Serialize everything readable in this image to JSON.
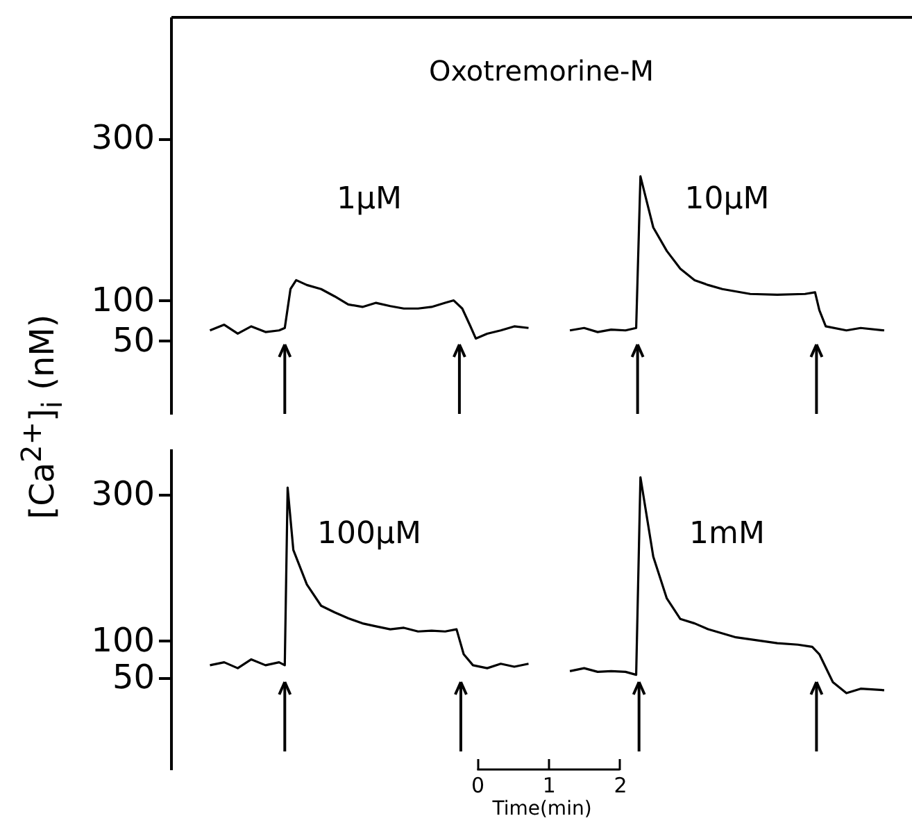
{
  "chart_data": [
    {
      "type": "line",
      "title": "Oxotremorine-M",
      "ylabel": "[Ca$^{2+}$]$_{i}$ (nM)",
      "xlim": [
        -4.3,
        6.1
      ],
      "ylim": [
        -40,
        450
      ],
      "yticks": [
        50,
        100,
        300
      ],
      "tick_labels": "y",
      "grid": false,
      "series": [
        {
          "name": "1μM",
          "color": "#000000",
          "x": [
            -3.75,
            -3.55,
            -3.36,
            -3.17,
            -2.97,
            -2.78,
            -2.7,
            -2.62,
            -2.54,
            -2.39,
            -2.19,
            -2.0,
            -1.81,
            -1.61,
            -1.42,
            -1.22,
            -1.03,
            -0.83,
            -0.64,
            -0.45,
            -0.33,
            -0.21,
            -0.1,
            -0.02,
            0.14,
            0.33,
            0.52,
            0.72
          ],
          "values": [
            63,
            70,
            59,
            68,
            61,
            63,
            66,
            114,
            125,
            119,
            114,
            105,
            95,
            92,
            97,
            93,
            90,
            90,
            92,
            97,
            100,
            90,
            69,
            53,
            59,
            63,
            68,
            66
          ]
        },
        {
          "name": "10μM",
          "color": "#000000",
          "x": [
            1.3,
            1.5,
            1.69,
            1.88,
            2.08,
            2.23,
            2.29,
            2.47,
            2.66,
            2.85,
            3.05,
            3.24,
            3.44,
            3.83,
            4.21,
            4.6,
            4.74,
            4.8,
            4.89,
            5.18,
            5.38,
            5.71
          ],
          "values": [
            63,
            66,
            61,
            64,
            63,
            66,
            253,
            190,
            161,
            139,
            125,
            119,
            114,
            108,
            107,
            108,
            110,
            88,
            68,
            63,
            66,
            63
          ]
        }
      ],
      "ref_lines": [
        {
          "axis": "x",
          "value": -2.7
        },
        {
          "axis": "x",
          "value": -0.25
        },
        {
          "axis": "x",
          "value": 2.25
        },
        {
          "axis": "x",
          "value": 4.76
        }
      ]
    },
    {
      "type": "line",
      "xlabel": "Time(min)",
      "xlim": [
        -4.3,
        6.1
      ],
      "xticks": [
        0,
        1,
        2
      ],
      "ylim": [
        -75,
        362
      ],
      "yticks": [
        50,
        100,
        300
      ],
      "grid": false,
      "series": [
        {
          "name": "100μM",
          "color": "#000000",
          "x": [
            -3.75,
            -3.55,
            -3.36,
            -3.17,
            -2.97,
            -2.78,
            -2.7,
            -2.66,
            -2.58,
            -2.39,
            -2.19,
            -2.0,
            -1.81,
            -1.61,
            -1.42,
            -1.22,
            -1.03,
            -0.83,
            -0.64,
            -0.45,
            -0.29,
            -0.19,
            -0.06,
            0.14,
            0.33,
            0.52,
            0.72
          ],
          "values": [
            67,
            71,
            63,
            75,
            67,
            71,
            67,
            309,
            224,
            177,
            148,
            139,
            131,
            124,
            120,
            116,
            118,
            113,
            114,
            113,
            116,
            82,
            67,
            63,
            69,
            65,
            69
          ]
        },
        {
          "name": "1mM",
          "color": "#000000",
          "x": [
            1.3,
            1.5,
            1.69,
            1.88,
            2.08,
            2.23,
            2.29,
            2.47,
            2.66,
            2.85,
            3.05,
            3.24,
            3.63,
            3.92,
            4.21,
            4.5,
            4.7,
            4.8,
            4.99,
            5.18,
            5.38,
            5.71
          ],
          "values": [
            59,
            63,
            58,
            59,
            58,
            54,
            323,
            215,
            158,
            130,
            124,
            116,
            105,
            101,
            97,
            95,
            92,
            82,
            44,
            29,
            35,
            33
          ]
        }
      ],
      "ref_lines": [
        {
          "axis": "x",
          "value": -2.7
        },
        {
          "axis": "x",
          "value": -0.23
        },
        {
          "axis": "x",
          "value": 2.27
        },
        {
          "axis": "x",
          "value": 4.76
        }
      ]
    }
  ]
}
